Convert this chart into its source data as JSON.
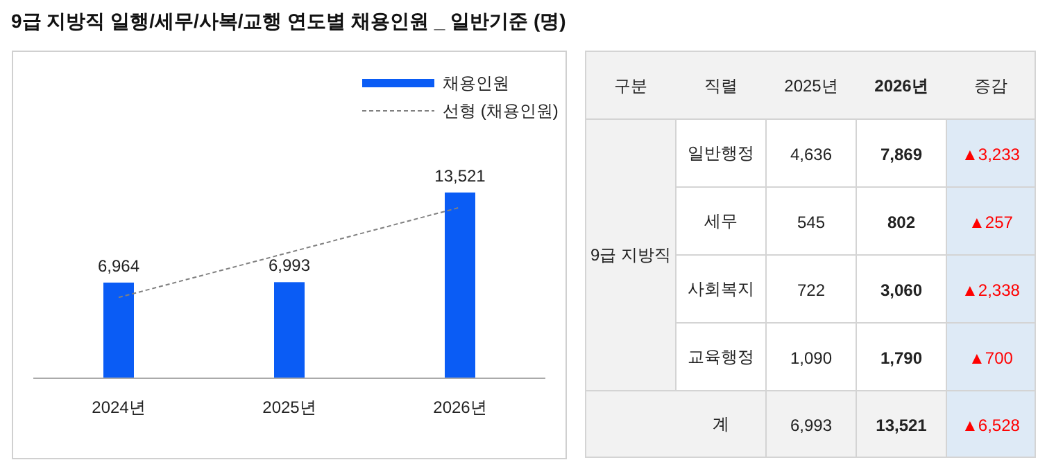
{
  "chart_data": [
    {
      "type": "bar",
      "title": "9급 지방직 일행/세무/사복/교행 연도별 채용인원 _ 일반기준 (명)",
      "categories": [
        "2024년",
        "2025년",
        "2026년"
      ],
      "series": [
        {
          "name": "채용인원",
          "color": "#0a5cf5",
          "values": [
            6964,
            6993,
            13521
          ],
          "value_labels": [
            "6,964",
            "6,993",
            "13,521"
          ]
        },
        {
          "name": "선형 (채용인원)",
          "type": "line",
          "color": "#808080",
          "line_style": "dashed",
          "values": [
            5881,
            9159,
            12438
          ]
        }
      ],
      "legend": "top right"
    },
    {
      "type": "other",
      "categories": [
        "2025년",
        "2026년",
        "증감"
      ],
      "y_categories": [
        "일반행정",
        "세무",
        "사회복지",
        "교육행정",
        "계"
      ],
      "cell_labels": [
        [
          "4,636",
          "7,869",
          "▲3,233"
        ],
        [
          "545",
          "802",
          "▲257"
        ],
        [
          "722",
          "3,060",
          "▲2,338"
        ],
        [
          "1,090",
          "1,790",
          "▲700"
        ],
        [
          "6,993",
          "13,521",
          "▲6,528"
        ]
      ],
      "annotations": [
        "구분",
        "직렬",
        "9급 지방직"
      ]
    }
  ]
}
